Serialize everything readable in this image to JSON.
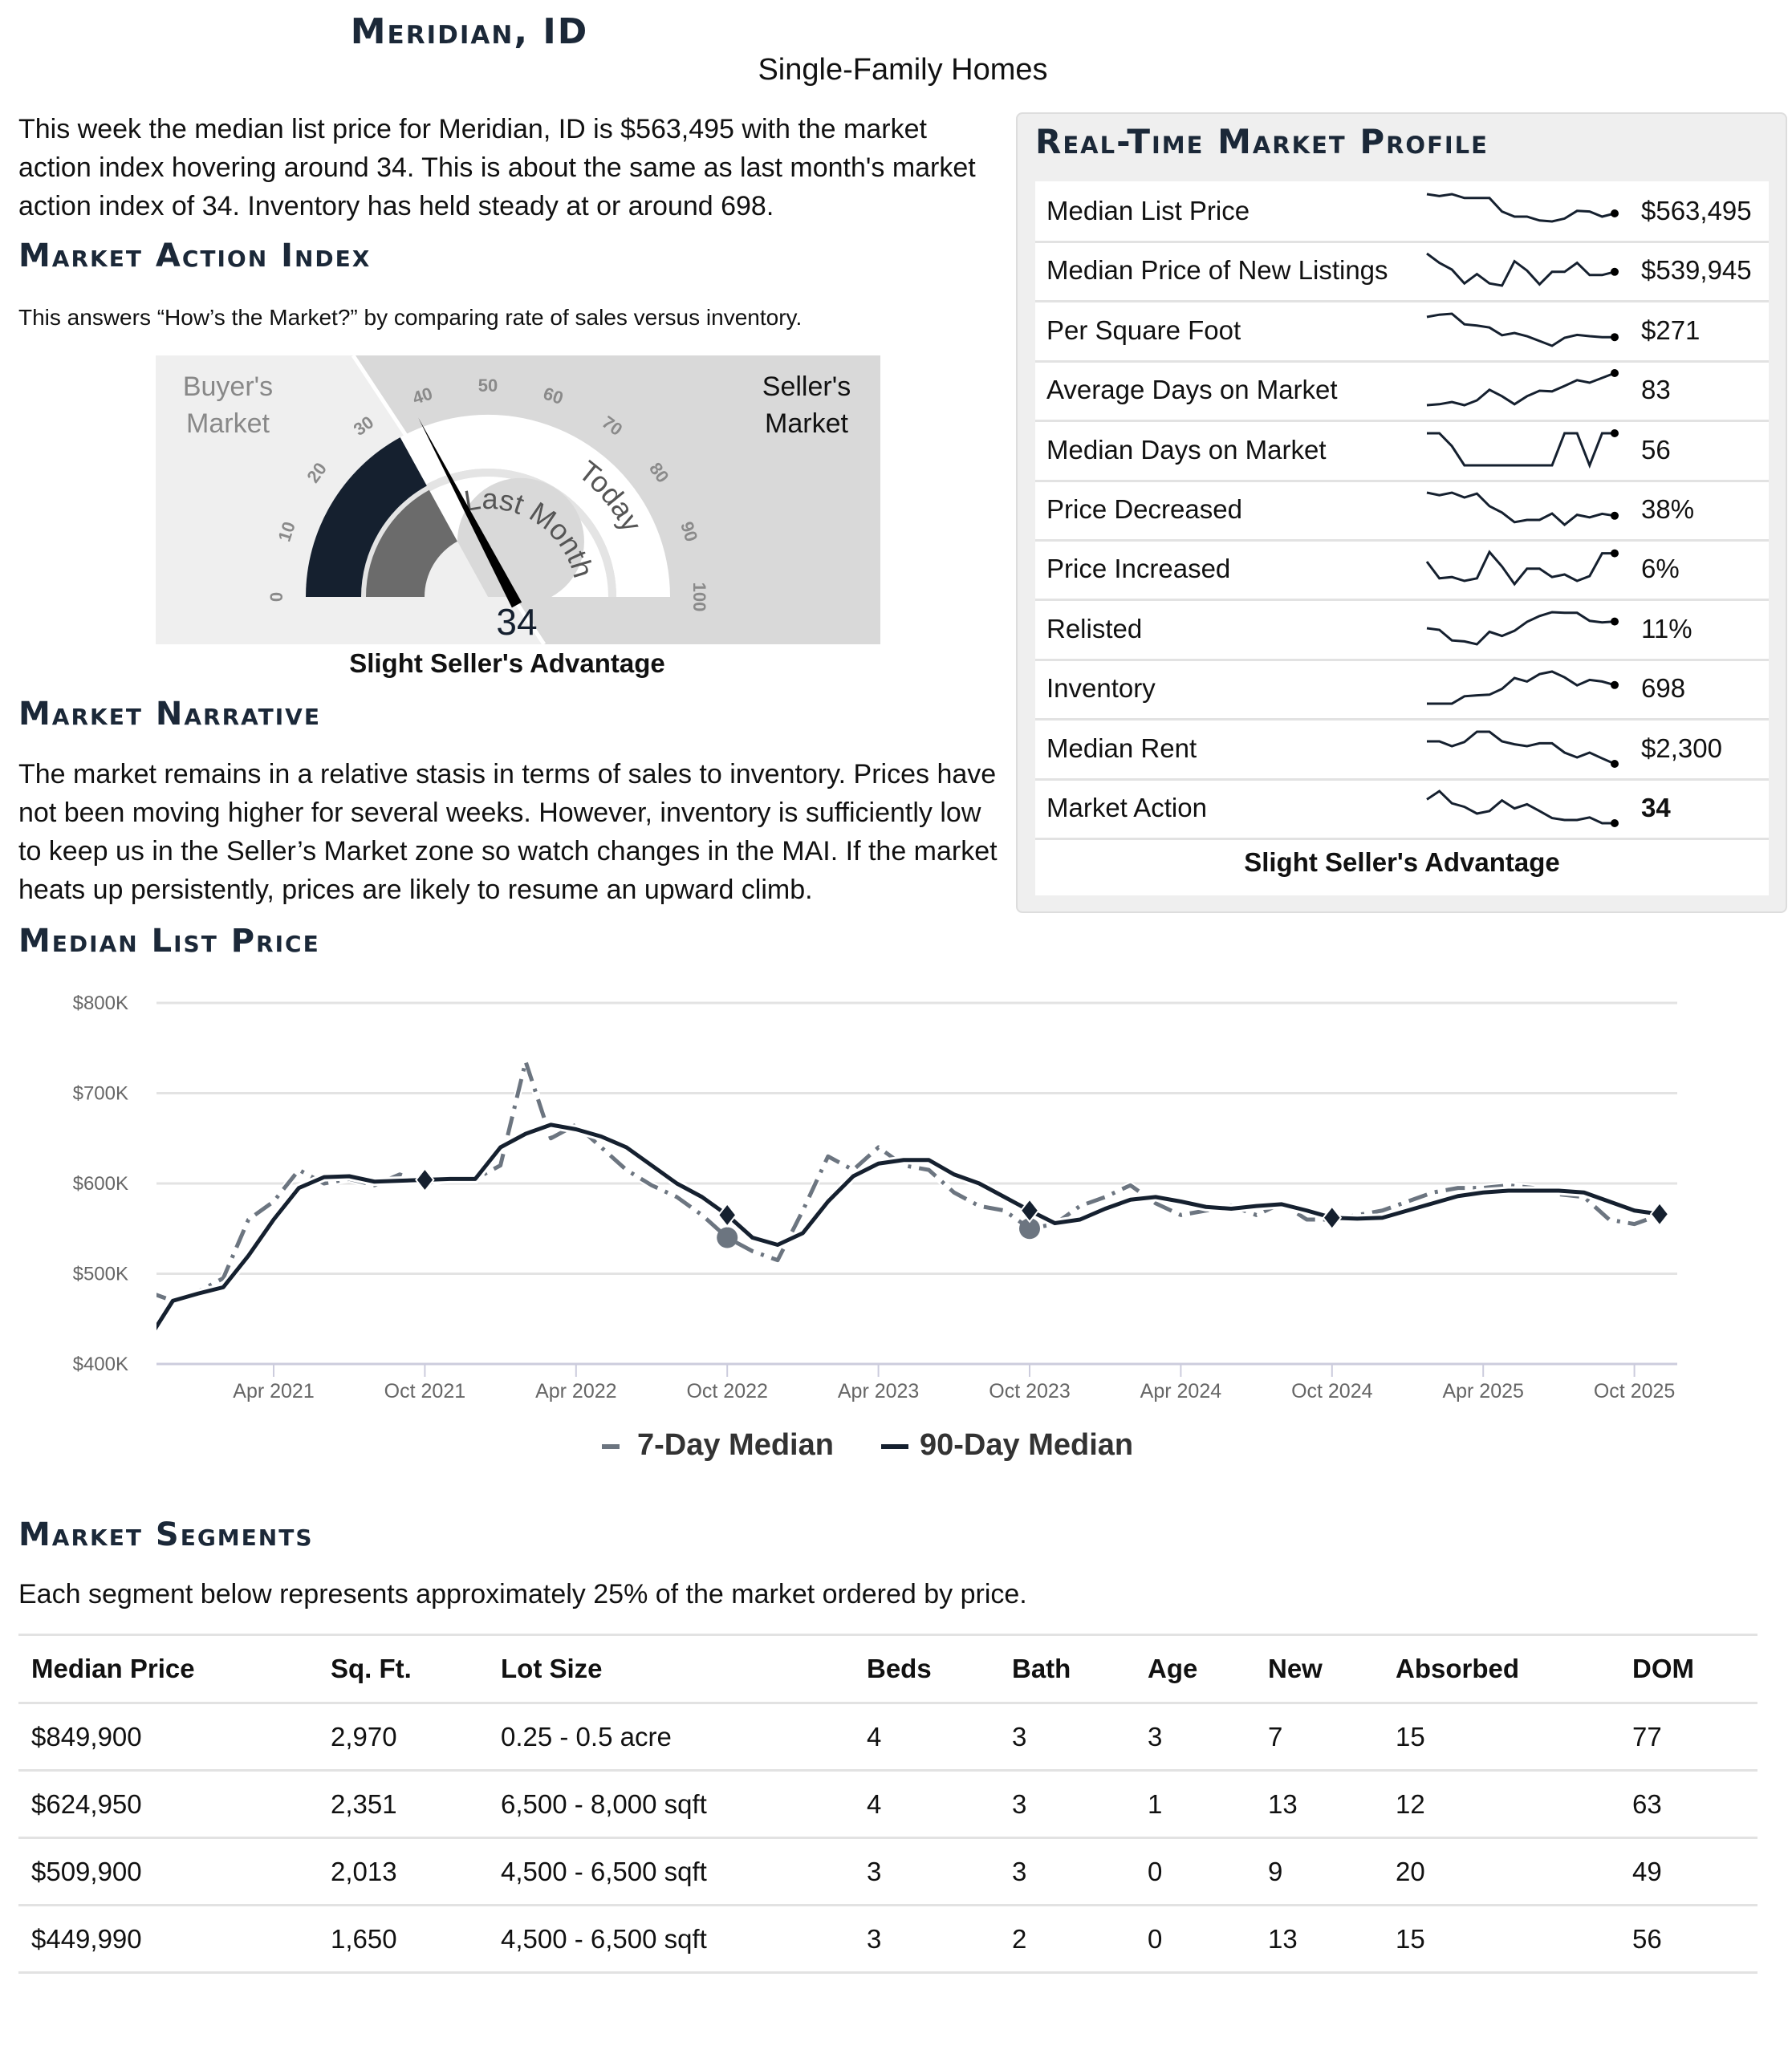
{
  "header": {
    "title": "Meridian, ID",
    "subtitle": "Single-Family Homes"
  },
  "intro": "This week the median list price for Meridian, ID is $563,495 with the market action index hovering around 34. This is about the same as last month's market action index of 34. Inventory has held steady at or around 698.",
  "mai": {
    "heading": "Market Action Index",
    "caption": "This answers “How’s the Market?” by comparing rate of sales versus inventory.",
    "gauge": {
      "value": 34,
      "last_month_value": 34,
      "ticks": [
        "0",
        "10",
        "20",
        "30",
        "40",
        "50",
        "60",
        "70",
        "80",
        "90",
        "100"
      ],
      "buyers_label_1": "Buyer's",
      "buyers_label_2": "Market",
      "sellers_label_1": "Seller's",
      "sellers_label_2": "Market",
      "ring_today": "Today",
      "ring_last_month": "Last Month",
      "colors": {
        "today": "#15202f",
        "last_month": "#6b6b6b",
        "buyers_bg": "#efefef",
        "sellers_bg": "#d9d9d9"
      }
    },
    "status": "Slight Seller's Advantage"
  },
  "narrative": {
    "heading": "Market Narrative",
    "text": "The market remains in a relative stasis in terms of sales to inventory. Prices have not been moving higher for several weeks. However, inventory is sufficiently low to keep us in the Seller’s Market zone so watch changes in the MAI. If the market heats up persistently, prices are likely to resume an upward climb."
  },
  "profile": {
    "title": "Real-Time Market Profile",
    "rows": [
      {
        "label": "Median List Price",
        "value": "$563,495",
        "trend": [
          10,
          9.4,
          10,
          8.8,
          8.8,
          8.8,
          4.6,
          3,
          3,
          1.8,
          1.5,
          2.4,
          4.8,
          4.6,
          3,
          4
        ]
      },
      {
        "label": "Median Price of New Listings",
        "value": "$539,945",
        "trend": [
          10,
          7.1,
          5,
          0.7,
          3.6,
          0.7,
          0,
          7.6,
          4.7,
          0.4,
          4.3,
          4.3,
          7.1,
          3.3,
          3.3,
          4.3
        ]
      },
      {
        "label": "Per Square Foot",
        "value": "$271",
        "trend": [
          9,
          9.7,
          10,
          6.7,
          6.3,
          5.7,
          3.3,
          4,
          3,
          1.5,
          0,
          2.5,
          3.4,
          3,
          2.7,
          2.7
        ]
      },
      {
        "label": "Average Days on Market",
        "value": "83",
        "trend": [
          0,
          0.3,
          1,
          0,
          1.5,
          4.8,
          2.8,
          0.3,
          2.8,
          4.5,
          4.3,
          6,
          7.8,
          7,
          8.5,
          10
        ]
      },
      {
        "label": "Median Days on Market",
        "value": "56",
        "trend": [
          10,
          10,
          6,
          0,
          0,
          0,
          0,
          0,
          0,
          0,
          0,
          10,
          10,
          0,
          10,
          10
        ]
      },
      {
        "label": "Price Decreased",
        "value": "38%",
        "trend": [
          10,
          9.2,
          10,
          8.5,
          9.7,
          5.8,
          3.8,
          0.8,
          1.5,
          1.5,
          3.5,
          0,
          3.1,
          2.3,
          3.4,
          2.8
        ]
      },
      {
        "label": "Price Increased",
        "value": "6%",
        "trend": [
          7,
          1.8,
          2.2,
          1,
          1.8,
          10,
          5.5,
          0,
          4.8,
          4.8,
          2.2,
          3,
          1,
          2.5,
          9.6,
          9.6
        ]
      },
      {
        "label": "Relisted",
        "value": "11%",
        "trend": [
          5,
          4.5,
          1.2,
          0.9,
          0,
          3.9,
          2.6,
          4.2,
          7,
          8.8,
          10,
          9.8,
          9.8,
          7.3,
          6.8,
          7.1
        ]
      },
      {
        "label": "Inventory",
        "value": "698",
        "trend": [
          0,
          0,
          0,
          2.3,
          2.6,
          2.8,
          4.6,
          8,
          6.9,
          9.2,
          10,
          8.2,
          5.7,
          7.4,
          6.9,
          5.8
        ]
      },
      {
        "label": "Median Rent",
        "value": "$2,300",
        "trend": [
          7,
          7,
          5.5,
          6.8,
          10,
          10,
          7,
          6.1,
          5.5,
          6.4,
          6.4,
          3.5,
          2,
          3.5,
          1.7,
          0
        ]
      },
      {
        "label": "Market Action",
        "value": "34",
        "trend": [
          7.4,
          10,
          6.2,
          5.1,
          3,
          3.8,
          7.1,
          4.6,
          5.9,
          3.8,
          1.6,
          1,
          1,
          1.8,
          0,
          0
        ]
      }
    ],
    "footer": "Slight Seller's Advantage"
  },
  "chart_data": {
    "type": "line",
    "title": "Median List Price",
    "y_ticks": [
      "$400K",
      "$500K",
      "$600K",
      "$700K",
      "$800K"
    ],
    "ylim": [
      400,
      800
    ],
    "y_unit": "$K",
    "x_ticks": [
      "Apr 2021",
      "Oct 2021",
      "Apr 2022",
      "Oct 2022",
      "Apr 2023",
      "Oct 2023",
      "Apr 2024",
      "Oct 2024",
      "Apr 2025",
      "Oct 2025"
    ],
    "x_tick_dates": [
      "2021-04",
      "2021-10",
      "2022-04",
      "2022-10",
      "2023-04",
      "2023-10",
      "2024-04",
      "2024-10",
      "2025-04",
      "2025-10"
    ],
    "grid": true,
    "legend_position": "bottom",
    "x": [
      "2020-11",
      "2020-12",
      "2021-01",
      "2021-02",
      "2021-03",
      "2021-04",
      "2021-05",
      "2021-06",
      "2021-07",
      "2021-08",
      "2021-09",
      "2021-10",
      "2021-11",
      "2021-12",
      "2022-01",
      "2022-02",
      "2022-03",
      "2022-04",
      "2022-05",
      "2022-06",
      "2022-07",
      "2022-08",
      "2022-09",
      "2022-10",
      "2022-11",
      "2022-12",
      "2023-01",
      "2023-02",
      "2023-03",
      "2023-04",
      "2023-05",
      "2023-06",
      "2023-07",
      "2023-08",
      "2023-09",
      "2023-10",
      "2023-11",
      "2023-12",
      "2024-01",
      "2024-02",
      "2024-03",
      "2024-04",
      "2024-05",
      "2024-06",
      "2024-07",
      "2024-08",
      "2024-09",
      "2024-10",
      "2024-11",
      "2024-12",
      "2025-01",
      "2025-02",
      "2025-03",
      "2025-04",
      "2025-05",
      "2025-06",
      "2025-07",
      "2025-08",
      "2025-09",
      "2025-10",
      "2025-11"
    ],
    "series": [
      {
        "name": "7-Day Median",
        "color": "#6c7580",
        "dash": true,
        "values": [
          480,
          470,
          480,
          495,
          560,
          580,
          615,
          600,
          605,
          598,
          610,
          600,
          605,
          605,
          620,
          735,
          650,
          665,
          640,
          615,
          598,
          585,
          565,
          540,
          525,
          515,
          570,
          630,
          615,
          640,
          620,
          615,
          590,
          575,
          570,
          550,
          555,
          575,
          585,
          598,
          578,
          565,
          570,
          575,
          565,
          578,
          560,
          560,
          565,
          570,
          580,
          590,
          595,
          595,
          598,
          595,
          588,
          585,
          560,
          555,
          565
        ]
      },
      {
        "name": "90-Day Median",
        "color": "#15202f",
        "dash": false,
        "values": [
          426,
          470,
          478,
          485,
          520,
          560,
          595,
          607,
          608,
          602,
          603,
          604,
          605,
          605,
          640,
          655,
          665,
          660,
          652,
          640,
          620,
          600,
          585,
          565,
          540,
          532,
          545,
          580,
          608,
          622,
          626,
          626,
          610,
          600,
          585,
          570,
          556,
          560,
          572,
          582,
          585,
          580,
          574,
          572,
          575,
          577,
          570,
          562,
          561,
          562,
          570,
          578,
          586,
          590,
          592,
          592,
          592,
          590,
          580,
          570,
          566
        ]
      }
    ],
    "markers": {
      "diamonds_90day": [
        {
          "x": "2021-10",
          "y": 604
        },
        {
          "x": "2022-10",
          "y": 565
        },
        {
          "x": "2023-10",
          "y": 570
        },
        {
          "x": "2024-10",
          "y": 562
        },
        {
          "x": "2025-11",
          "y": 566
        }
      ],
      "circles_7day": [
        {
          "x": "2022-10",
          "y": 540
        },
        {
          "x": "2023-10",
          "y": 550
        }
      ]
    }
  },
  "segments": {
    "heading": "Market Segments",
    "caption": "Each segment below represents approximately 25% of the market ordered by price.",
    "columns": [
      "Median Price",
      "Sq. Ft.",
      "Lot Size",
      "Beds",
      "Bath",
      "Age",
      "New",
      "Absorbed",
      "DOM"
    ],
    "rows": [
      [
        "$849,900",
        "2,970",
        "0.25 - 0.5 acre",
        "4",
        "3",
        "3",
        "7",
        "15",
        "77"
      ],
      [
        "$624,950",
        "2,351",
        "6,500 - 8,000 sqft",
        "4",
        "3",
        "1",
        "13",
        "12",
        "63"
      ],
      [
        "$509,900",
        "2,013",
        "4,500 - 6,500 sqft",
        "3",
        "3",
        "0",
        "9",
        "20",
        "49"
      ],
      [
        "$449,990",
        "1,650",
        "4,500 - 6,500 sqft",
        "3",
        "2",
        "0",
        "13",
        "15",
        "56"
      ]
    ]
  }
}
